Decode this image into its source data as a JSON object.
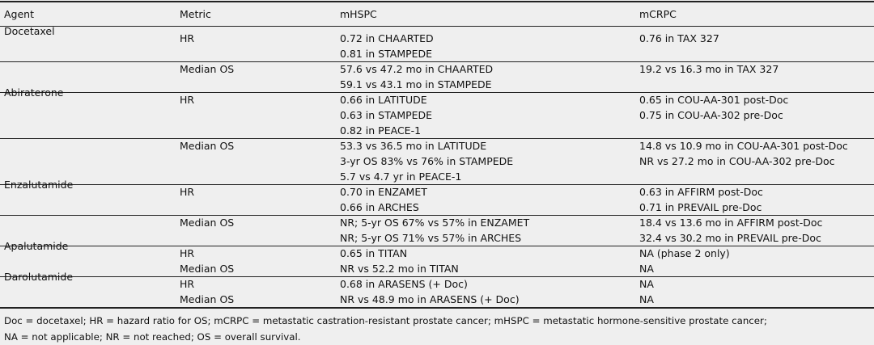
{
  "table": {
    "header": [
      "Agent",
      "Metric",
      "mHSPC",
      "mCRPC"
    ],
    "agents": [
      {
        "name": "Docetaxel",
        "rows": [
          {
            "metric": "HR",
            "mhspc": [
              "0.72 in CHAARTED",
              "0.81 in STAMPEDE"
            ],
            "mcrpc": [
              "0.76 in TAX 327"
            ]
          },
          {
            "metric": "Median OS",
            "mhspc": [
              "57.6 vs 47.2 mo in CHAARTED",
              "59.1 vs 43.1 mo in STAMPEDE"
            ],
            "mcrpc": [
              "19.2 vs 16.3 mo in TAX 327"
            ]
          }
        ]
      },
      {
        "name": "Abiraterone",
        "rows": [
          {
            "metric": "HR",
            "mhspc": [
              "0.66 in LATITUDE",
              "0.63 in STAMPEDE",
              "0.82 in PEACE-1"
            ],
            "mcrpc": [
              "0.65 in COU-AA-301 post-Doc",
              "0.75 in COU-AA-302 pre-Doc"
            ]
          },
          {
            "metric": "Median OS",
            "mhspc": [
              "53.3 vs 36.5 mo in LATITUDE",
              "3-yr OS 83% vs 76% in STAMPEDE",
              "5.7 vs 4.7 yr in PEACE-1"
            ],
            "mcrpc": [
              "14.8 vs 10.9 mo in COU-AA-301 post-Doc",
              "NR vs 27.2 mo in COU-AA-302 pre-Doc"
            ]
          }
        ]
      },
      {
        "name": "Enzalutamide",
        "rows": [
          {
            "metric": "HR",
            "mhspc": [
              "0.70 in ENZAMET",
              "0.66 in ARCHES"
            ],
            "mcrpc": [
              "0.63 in AFFIRM post-Doc",
              "0.71 in PREVAIL pre-Doc"
            ]
          },
          {
            "metric": "Median OS",
            "mhspc": [
              "NR; 5-yr OS 67% vs 57% in ENZAMET",
              "NR; 5-yr OS 71% vs 57% in ARCHES"
            ],
            "mcrpc": [
              "18.4 vs 13.6 mo in AFFIRM post-Doc",
              "32.4 vs 30.2 mo in PREVAIL pre-Doc"
            ]
          }
        ]
      },
      {
        "name": "Apalutamide",
        "rows": [
          {
            "metric": "HR",
            "mhspc": [
              "0.65 in TITAN"
            ],
            "mcrpc": [
              "NA (phase 2 only)"
            ]
          },
          {
            "metric": "Median OS",
            "mhspc": [
              "NR vs 52.2 mo in TITAN"
            ],
            "mcrpc": [
              "NA"
            ]
          }
        ]
      },
      {
        "name": "Darolutamide",
        "rows": [
          {
            "metric": "HR",
            "mhspc": [
              "0.68 in ARASENS (+ Doc)"
            ],
            "mcrpc": [
              "NA"
            ]
          },
          {
            "metric": "Median OS",
            "mhspc": [
              "NR vs 48.9 mo in ARASENS (+ Doc)"
            ],
            "mcrpc": [
              "NA"
            ]
          }
        ]
      }
    ],
    "footnote": [
      "Doc = docetaxel; HR = hazard ratio for OS; mCRPC = metastatic castration-resistant prostate cancer; mHSPC = metastatic hormone-sensitive prostate cancer;",
      "NA = not applicable; NR = not reached; OS = overall survival."
    ]
  }
}
